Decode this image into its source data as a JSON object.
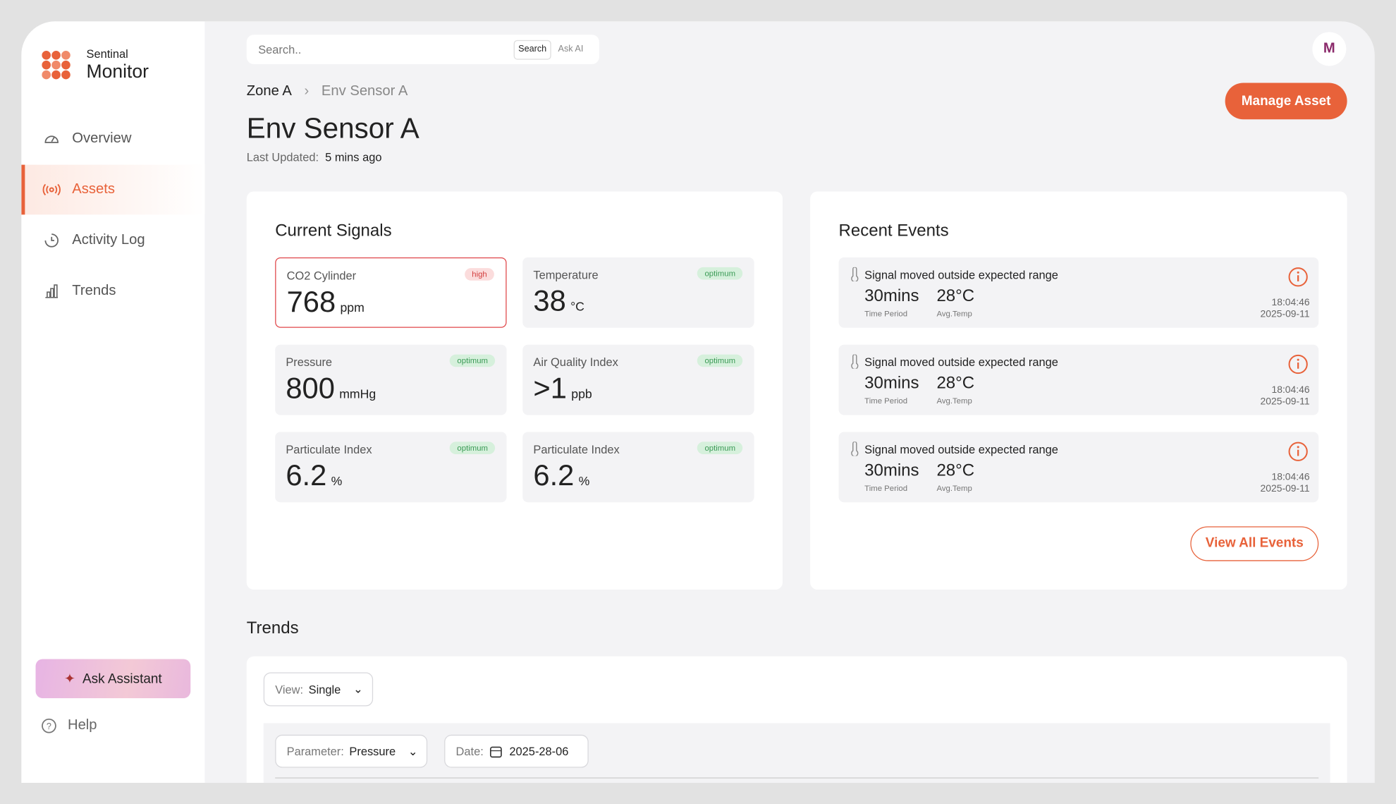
{
  "brand": {
    "top": "Sentinal",
    "name": "Monitor"
  },
  "nav": [
    {
      "label": "Overview"
    },
    {
      "label": "Assets",
      "active": true
    },
    {
      "label": "Activity Log"
    },
    {
      "label": "Trends"
    }
  ],
  "assistant": "Ask Assistant",
  "help": "Help",
  "search": {
    "placeholder": "Search..",
    "search_button": "Search",
    "ai_button": "Ask AI"
  },
  "avatar": "M",
  "breadcrumb": [
    "Zone A",
    "Env Sensor A"
  ],
  "title": "Env Sensor A",
  "last_updated": {
    "label": "Last Updated:",
    "value": "5 mins ago"
  },
  "manage_button": "Manage Asset",
  "signals": {
    "title": "Current Signals",
    "items": [
      {
        "name": "CO2 Cylinder",
        "status": "high",
        "value": 768,
        "unit": "ppm"
      },
      {
        "name": "Temperature",
        "status": "optimum",
        "value": 38,
        "unit": "°C"
      },
      {
        "name": "Pressure",
        "status": "optimum",
        "value": 800,
        "unit": "mmHg"
      },
      {
        "name": "Air Quality Index",
        "status": "optimum",
        "value": ">1",
        "unit": "ppb"
      },
      {
        "name": "Particulate Index",
        "status": "optimum",
        "value": 6.2,
        "unit": "%"
      },
      {
        "name": "Particulate Index",
        "status": "optimum",
        "value": 6.2,
        "unit": "%"
      }
    ]
  },
  "events": {
    "title": "Recent Events",
    "items": [
      {
        "message": "Signal moved outside expected range",
        "period": "30mins",
        "period_label": "Time Period",
        "temp": "28°C",
        "temp_label": "Avg.Temp",
        "time": "18:04:46",
        "date": "2025-09-11"
      },
      {
        "message": "Signal moved outside expected range",
        "period": "30mins",
        "period_label": "Time Period",
        "temp": "28°C",
        "temp_label": "Avg.Temp",
        "time": "18:04:46",
        "date": "2025-09-11"
      },
      {
        "message": "Signal moved outside expected range",
        "period": "30mins",
        "period_label": "Time Period",
        "temp": "28°C",
        "temp_label": "Avg.Temp",
        "time": "18:04:46",
        "date": "2025-09-11"
      }
    ],
    "button": "View All Events"
  },
  "trends": {
    "title": "Trends",
    "view": {
      "label": "View:",
      "value": "Single"
    },
    "parameter": {
      "label": "Parameter:",
      "value": "Pressure"
    },
    "date": {
      "label": "Date:",
      "value": "2025-28-06"
    }
  }
}
